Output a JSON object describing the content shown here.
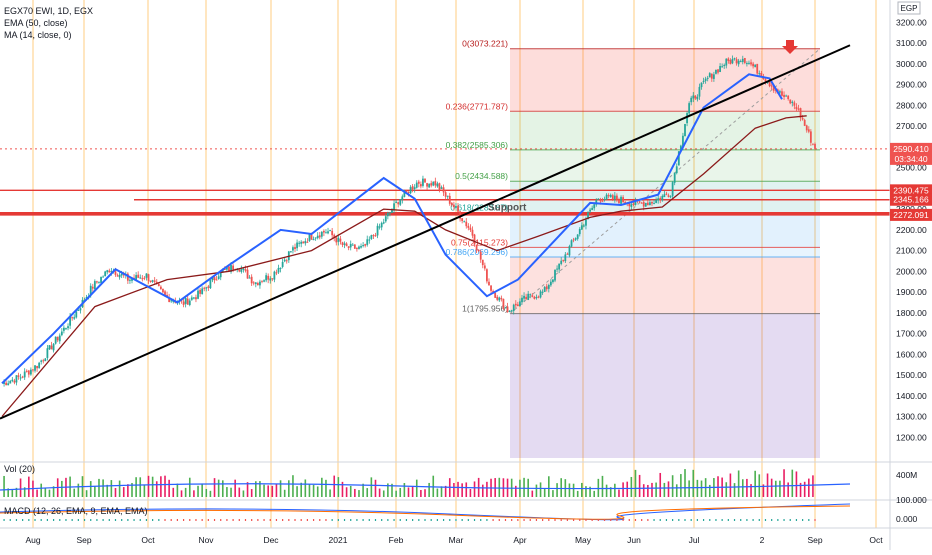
{
  "legend": {
    "symbol": "EGX70 EWI, 1D, EGX",
    "ema": "EMA (50, close)",
    "ma": "MA (14, close, 0)",
    "vol": "Vol (20)",
    "macd": "MACD (12, 26, EMA, 9, EMA, EMA)"
  },
  "currency_badge": "EGP",
  "countdown": "03:34:40",
  "colors": {
    "up": "#26a69a",
    "down": "#ef5350",
    "vol_up": "#4caf50",
    "vol_down": "#e91e63",
    "ema": "#8b1a1a",
    "ma": "#2962ff",
    "trendline": "#000000",
    "support": "#e53935",
    "grid_vertical": "#ffcc80"
  },
  "chart_data": {
    "type": "candlestick",
    "y_axis_ticks": [
      1200,
      1300,
      1400,
      1500,
      1600,
      1700,
      1800,
      1900,
      2000,
      2100,
      2200,
      2300,
      2400,
      2500,
      2600,
      2700,
      2800,
      2900,
      3000,
      3100,
      3200
    ],
    "ylim": [
      1100,
      3260
    ],
    "x_axis_labels": [
      "Aug",
      "Sep",
      "Oct",
      "Nov",
      "Dec",
      "2021",
      "Feb",
      "Mar",
      "Apr",
      "May",
      "Jun",
      "Jul",
      "2",
      "Sep",
      "Oct"
    ],
    "price_path": [
      [
        1500,
        1420
      ],
      [
        1530,
        1450
      ],
      [
        1580,
        1520
      ],
      [
        1700,
        1640
      ],
      [
        1820,
        1760
      ],
      [
        1960,
        1890
      ],
      [
        2040,
        1990
      ],
      [
        1980,
        1940
      ],
      [
        2000,
        1960
      ],
      [
        1900,
        1860
      ],
      [
        1860,
        1830
      ],
      [
        1910,
        1880
      ],
      [
        2020,
        1960
      ],
      [
        2050,
        2010
      ],
      [
        1960,
        1930
      ],
      [
        2000,
        1970
      ],
      [
        2120,
        2080
      ],
      [
        2180,
        2150
      ],
      [
        2200,
        2190
      ],
      [
        2130,
        2100
      ],
      [
        2120,
        2100
      ],
      [
        2250,
        2200
      ],
      [
        2380,
        2320
      ],
      [
        2440,
        2420
      ],
      [
        2430,
        2420
      ],
      [
        2330,
        2300
      ],
      [
        2200,
        2180
      ],
      [
        1950,
        1900
      ],
      [
        1820,
        1800
      ],
      [
        1880,
        1860
      ],
      [
        1920,
        1880
      ],
      [
        2060,
        2040
      ],
      [
        2230,
        2180
      ],
      [
        2370,
        2340
      ],
      [
        2360,
        2340
      ],
      [
        2320,
        2330
      ],
      [
        2340,
        2330
      ],
      [
        2390,
        2370
      ],
      [
        2820,
        2780
      ],
      [
        2950,
        2900
      ],
      [
        3020,
        2990
      ],
      [
        3073,
        2990
      ],
      [
        2960,
        2950
      ],
      [
        2880,
        2840
      ],
      [
        2800,
        2780
      ],
      [
        2590,
        2590
      ]
    ],
    "ema_50": [
      [
        0,
        1300
      ],
      [
        45,
        1830
      ],
      [
        80,
        1960
      ],
      [
        110,
        2000
      ],
      [
        150,
        2100
      ],
      [
        185,
        2300
      ],
      [
        200,
        2290
      ],
      [
        215,
        2200
      ],
      [
        240,
        2100
      ],
      [
        260,
        2170
      ],
      [
        285,
        2260
      ],
      [
        300,
        2290
      ],
      [
        320,
        2310
      ],
      [
        340,
        2470
      ],
      [
        365,
        2690
      ],
      [
        380,
        2740
      ],
      [
        390,
        2750
      ]
    ],
    "ma_14": [
      [
        0,
        1460
      ],
      [
        25,
        1700
      ],
      [
        55,
        2010
      ],
      [
        85,
        1850
      ],
      [
        110,
        2030
      ],
      [
        135,
        2200
      ],
      [
        150,
        2180
      ],
      [
        185,
        2450
      ],
      [
        200,
        2350
      ],
      [
        215,
        2080
      ],
      [
        235,
        1880
      ],
      [
        250,
        1960
      ],
      [
        285,
        2330
      ],
      [
        300,
        2320
      ],
      [
        318,
        2370
      ],
      [
        340,
        2790
      ],
      [
        362,
        2950
      ],
      [
        372,
        2930
      ],
      [
        378,
        2830
      ]
    ],
    "fibonacci": [
      {
        "label": "0(3073.221)",
        "value": 3073.221
      },
      {
        "label": "0.236(2771.787)",
        "value": 2771.787
      },
      {
        "label": "0.382(2585.306)",
        "value": 2585.306
      },
      {
        "label": "0.5(2434.588)",
        "value": 2434.588
      },
      {
        "label": "0.618(2283.87)",
        "value": 2283.87
      },
      {
        "label": "0.75(2115.273)",
        "value": 2115.273
      },
      {
        "label": "0.786(2069.296)",
        "value": 2069.296
      },
      {
        "label": "1(1795.956)",
        "value": 1795.956
      }
    ],
    "annotations": {
      "support": "Support"
    },
    "price_labels": [
      {
        "value": 2590.41,
        "text": "2590.410",
        "color": "#ef5350"
      },
      {
        "value": 2390.475,
        "text": "2390.475",
        "color": "#e53935"
      },
      {
        "value": 2345.166,
        "text": "2345.166",
        "color": "#e53935"
      },
      {
        "value": 2272.091,
        "text": "2272.091",
        "color": "#e53935"
      }
    ],
    "horizontal_levels": [
      2390.475,
      2345.166,
      2272.091,
      2280
    ],
    "trendline": {
      "start": 1290,
      "end": 3090
    },
    "volume": {
      "axis_labels": [
        "400M"
      ]
    },
    "macd": {
      "axis_labels": [
        "100.000",
        "0.000"
      ]
    }
  }
}
